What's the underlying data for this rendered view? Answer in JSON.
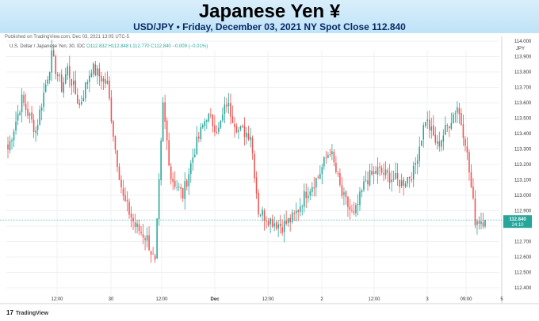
{
  "header": {
    "title": "Japanese Yen  ¥",
    "subtitle": "USD/JPY • Friday, December 03, 2021 NY Spot Close 112.840"
  },
  "published": "Published on TradingView.com, Dec 03, 2021 13:05 UTC-5",
  "legend": {
    "symbol": "U.S. Dollar / Japanese Yen, 30, IDC",
    "o": "O112.832",
    "h": "H112.848",
    "l": "L112.770",
    "c": "C112.840",
    "chg": "−0.009 (−0.01%)"
  },
  "footer": {
    "brand": "TradingView",
    "logo_icon": "tradingview-logo-icon"
  },
  "colors": {
    "up": "#26a69a",
    "down": "#ef5350",
    "last": "#26a69a",
    "axis_text": "#333333"
  },
  "chart_data": {
    "type": "candlestick",
    "title": "USD/JPY 30-minute",
    "currency_label": "JPY",
    "ylim": [
      112.4,
      114.05
    ],
    "yticks": [
      "112.400",
      "112.500",
      "112.600",
      "112.700",
      "112.800",
      "112.900",
      "113.000",
      "113.100",
      "113.200",
      "113.300",
      "113.400",
      "113.500",
      "113.600",
      "113.700",
      "113.800",
      "113.900",
      "114.000"
    ],
    "xticks": [
      "12:00",
      "30",
      "12:00",
      "Dec",
      "12:00",
      "2",
      "12:00",
      "3",
      "09:00",
      "5"
    ],
    "last_price": "112.840",
    "last_time": "24:10",
    "grid": true,
    "keypoints": [
      [
        0,
        113.3
      ],
      [
        7,
        113.62
      ],
      [
        14,
        113.42
      ],
      [
        22,
        113.9
      ],
      [
        27,
        113.7
      ],
      [
        30,
        113.82
      ],
      [
        36,
        113.58
      ],
      [
        42,
        113.83
      ],
      [
        50,
        113.72
      ],
      [
        54,
        113.3
      ],
      [
        58,
        112.98
      ],
      [
        64,
        112.8
      ],
      [
        70,
        112.72
      ],
      [
        74,
        112.55
      ],
      [
        78,
        113.58
      ],
      [
        82,
        113.12
      ],
      [
        88,
        113.0
      ],
      [
        94,
        113.3
      ],
      [
        100,
        113.52
      ],
      [
        106,
        113.42
      ],
      [
        110,
        113.6
      ],
      [
        116,
        113.42
      ],
      [
        122,
        113.4
      ],
      [
        126,
        112.9
      ],
      [
        132,
        112.84
      ],
      [
        138,
        112.8
      ],
      [
        144,
        112.86
      ],
      [
        150,
        113.02
      ],
      [
        156,
        113.12
      ],
      [
        162,
        113.3
      ],
      [
        168,
        113.0
      ],
      [
        174,
        112.86
      ],
      [
        180,
        113.1
      ],
      [
        186,
        113.16
      ],
      [
        192,
        113.12
      ],
      [
        198,
        113.08
      ],
      [
        204,
        113.15
      ],
      [
        210,
        113.5
      ],
      [
        216,
        113.32
      ],
      [
        220,
        113.42
      ],
      [
        226,
        113.58
      ],
      [
        230,
        113.36
      ],
      [
        235,
        112.84
      ],
      [
        240,
        112.84
      ]
    ]
  }
}
